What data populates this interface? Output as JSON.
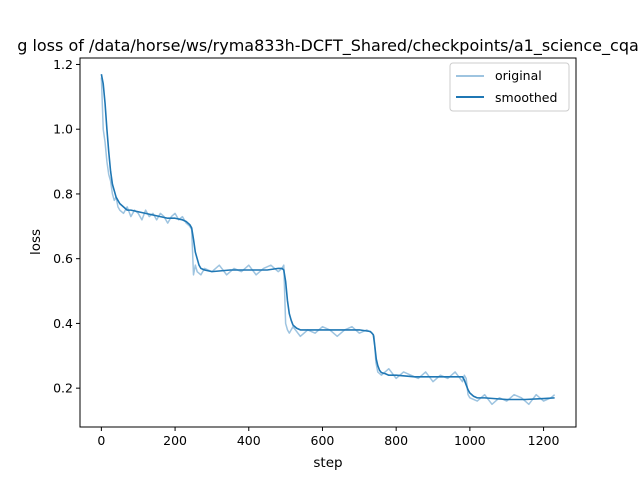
{
  "chart_data": {
    "type": "line",
    "title": "g loss of /data/horse/ws/ryma833h-DCFT_Shared/checkpoints/a1_science_cqa",
    "xlabel": "step",
    "ylabel": "loss",
    "xlim": [
      -58,
      1288
    ],
    "ylim": [
      0.08,
      1.22
    ],
    "xticks": [
      0,
      200,
      400,
      600,
      800,
      1000,
      1200
    ],
    "yticks": [
      0.2,
      0.4,
      0.6,
      0.8,
      1.0,
      1.2
    ],
    "xtick_labels": [
      "0",
      "200",
      "400",
      "600",
      "800",
      "1000",
      "1200"
    ],
    "ytick_labels": [
      "0.2",
      "0.4",
      "0.6",
      "0.8",
      "1.0",
      "1.2"
    ],
    "legend": {
      "position": "top-right",
      "entries": [
        "original",
        "smoothed"
      ]
    },
    "colors": {
      "original": "#9ec4e0",
      "smoothed": "#1f77b4"
    },
    "grid": false,
    "series": [
      {
        "name": "original",
        "x": [
          0,
          5,
          10,
          15,
          20,
          25,
          30,
          35,
          40,
          45,
          50,
          60,
          70,
          80,
          90,
          100,
          110,
          120,
          130,
          140,
          150,
          160,
          170,
          180,
          190,
          200,
          210,
          220,
          230,
          240,
          245,
          250,
          255,
          260,
          270,
          280,
          300,
          320,
          340,
          360,
          380,
          400,
          420,
          440,
          460,
          480,
          490,
          495,
          500,
          505,
          510,
          520,
          540,
          560,
          580,
          600,
          620,
          640,
          660,
          680,
          700,
          720,
          735,
          740,
          745,
          750,
          760,
          780,
          800,
          820,
          840,
          860,
          880,
          900,
          920,
          940,
          960,
          980,
          985,
          990,
          995,
          1000,
          1020,
          1040,
          1060,
          1080,
          1100,
          1120,
          1140,
          1160,
          1180,
          1200,
          1220,
          1230
        ],
        "y": [
          1.16,
          1.0,
          0.96,
          0.9,
          0.86,
          0.84,
          0.8,
          0.78,
          0.79,
          0.76,
          0.75,
          0.74,
          0.76,
          0.73,
          0.75,
          0.74,
          0.72,
          0.75,
          0.73,
          0.74,
          0.72,
          0.74,
          0.73,
          0.71,
          0.73,
          0.74,
          0.72,
          0.73,
          0.71,
          0.7,
          0.69,
          0.55,
          0.58,
          0.56,
          0.55,
          0.57,
          0.56,
          0.58,
          0.55,
          0.57,
          0.56,
          0.58,
          0.55,
          0.57,
          0.58,
          0.56,
          0.57,
          0.58,
          0.4,
          0.38,
          0.37,
          0.39,
          0.36,
          0.38,
          0.37,
          0.39,
          0.38,
          0.36,
          0.38,
          0.39,
          0.37,
          0.38,
          0.37,
          0.36,
          0.28,
          0.25,
          0.24,
          0.26,
          0.23,
          0.25,
          0.24,
          0.23,
          0.25,
          0.22,
          0.24,
          0.23,
          0.25,
          0.22,
          0.24,
          0.23,
          0.18,
          0.17,
          0.16,
          0.18,
          0.15,
          0.17,
          0.16,
          0.18,
          0.17,
          0.15,
          0.18,
          0.16,
          0.17,
          0.18
        ]
      },
      {
        "name": "smoothed",
        "x": [
          0,
          5,
          10,
          15,
          20,
          25,
          30,
          40,
          50,
          60,
          70,
          80,
          100,
          120,
          140,
          160,
          180,
          200,
          220,
          230,
          240,
          245,
          250,
          255,
          260,
          265,
          270,
          280,
          300,
          350,
          400,
          450,
          480,
          490,
          495,
          500,
          505,
          510,
          515,
          520,
          530,
          540,
          560,
          600,
          650,
          700,
          730,
          738,
          742,
          746,
          750,
          755,
          760,
          770,
          780,
          800,
          850,
          900,
          950,
          980,
          985,
          990,
          995,
          1000,
          1010,
          1020,
          1040,
          1100,
          1150,
          1200,
          1230
        ],
        "y": [
          1.17,
          1.14,
          1.08,
          1.0,
          0.93,
          0.87,
          0.83,
          0.79,
          0.77,
          0.76,
          0.75,
          0.75,
          0.745,
          0.74,
          0.735,
          0.73,
          0.725,
          0.725,
          0.72,
          0.715,
          0.705,
          0.695,
          0.66,
          0.62,
          0.6,
          0.58,
          0.57,
          0.565,
          0.56,
          0.565,
          0.565,
          0.565,
          0.57,
          0.57,
          0.565,
          0.53,
          0.47,
          0.43,
          0.41,
          0.395,
          0.385,
          0.38,
          0.38,
          0.38,
          0.38,
          0.38,
          0.375,
          0.365,
          0.33,
          0.29,
          0.27,
          0.255,
          0.248,
          0.245,
          0.24,
          0.24,
          0.235,
          0.235,
          0.235,
          0.235,
          0.225,
          0.21,
          0.195,
          0.185,
          0.175,
          0.17,
          0.17,
          0.165,
          0.165,
          0.168,
          0.17
        ]
      }
    ]
  }
}
